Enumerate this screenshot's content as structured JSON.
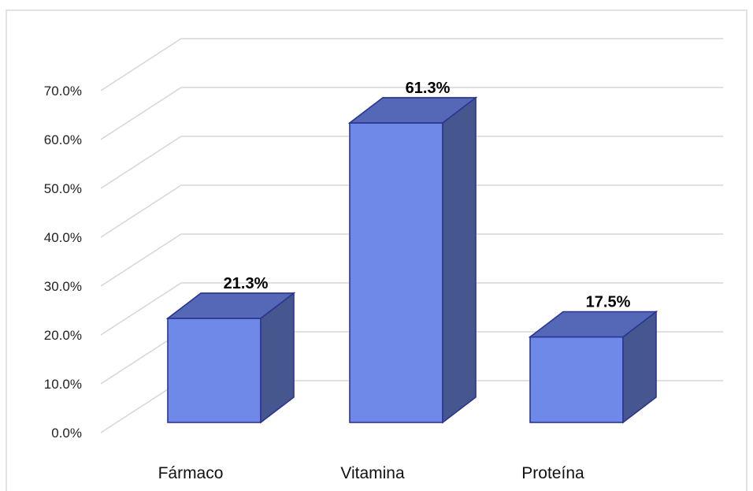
{
  "chart_data": {
    "type": "bar",
    "categories": [
      "Fármaco",
      "Vitamina",
      "Proteína"
    ],
    "values": [
      21.3,
      61.3,
      17.5
    ],
    "data_labels": [
      "21.3%",
      "61.3%",
      "17.5%"
    ],
    "ylim": [
      0,
      70
    ],
    "yticks": [
      0,
      10,
      20,
      30,
      40,
      50,
      60,
      70
    ],
    "ytick_labels": [
      "0.0%",
      "10.0%",
      "20.0%",
      "30.0%",
      "40.0%",
      "50.0%",
      "60.0%",
      "70.0%"
    ],
    "grid": true,
    "legend": "none",
    "style": "3d",
    "colors": {
      "front": "#6f89e8",
      "top": "#5568b8",
      "side": "#46568f",
      "outline": "#2c3590"
    }
  }
}
